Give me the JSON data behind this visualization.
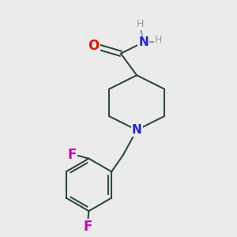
{
  "bg_color": "#ebebeb",
  "bond_color": "#2d4a3e",
  "oxygen_color": "#ee1100",
  "nitrogen_color": "#2222dd",
  "fluorine_color": "#cc00bb",
  "hydrogen_color": "#999999",
  "bond_width": 1.5,
  "figsize": [
    3.0,
    3.0
  ],
  "dpi": 100,
  "xlim": [
    0,
    10
  ],
  "ylim": [
    0,
    10
  ]
}
